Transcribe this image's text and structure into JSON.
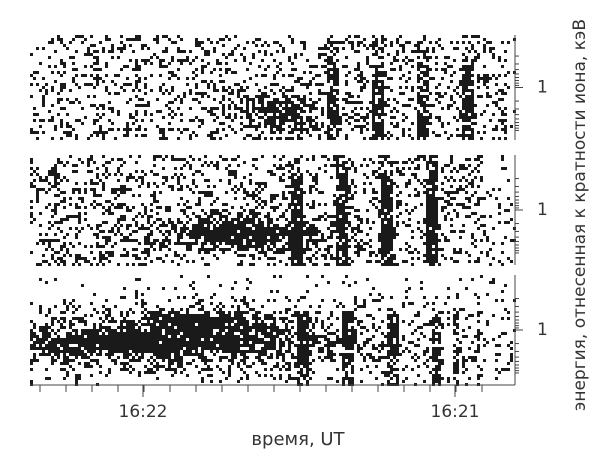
{
  "chart_data": {
    "type": "spectrogram",
    "x_labels": [
      "16:22",
      "16:21"
    ],
    "xlabel": "время, UT",
    "ylabel": "энергия, отнесенная к кратности иона, кэВ",
    "panels": [
      {
        "yticks": [
          1
        ]
      },
      {
        "yticks": [
          1
        ]
      },
      {
        "yticks": [
          1
        ]
      }
    ],
    "log_scale": true
  }
}
